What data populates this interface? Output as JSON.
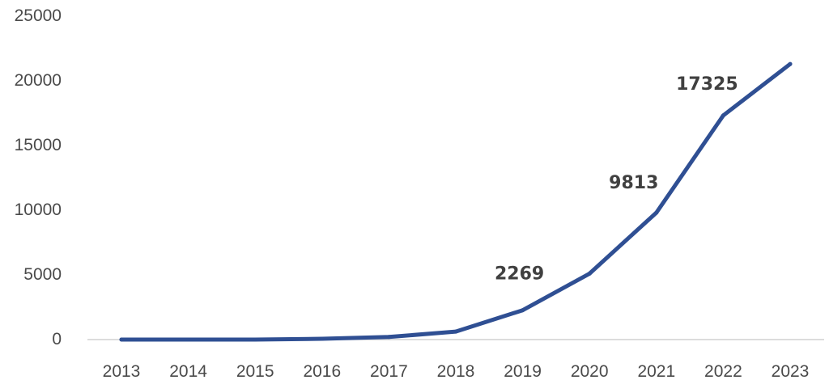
{
  "chart_data": {
    "type": "line",
    "title": "",
    "xlabel": "",
    "ylabel": "",
    "categories": [
      "2013",
      "2014",
      "2015",
      "2016",
      "2017",
      "2018",
      "2019",
      "2020",
      "2021",
      "2022",
      "2023"
    ],
    "series": [
      {
        "values": [
          0,
          0,
          0,
          60,
          200,
          620,
          2269,
          5100,
          9813,
          17325,
          21300
        ],
        "color": "#2f4f93"
      }
    ],
    "ylim": [
      0,
      25000
    ],
    "yticks": [
      "0",
      "5000",
      "10000",
      "15000",
      "20000",
      "25000"
    ],
    "data_labels": [
      {
        "category": "2019",
        "text": "2269"
      },
      {
        "category": "2021",
        "text": "9813"
      },
      {
        "category": "2022",
        "text": "17325"
      }
    ],
    "grid": false,
    "legend": "none"
  }
}
